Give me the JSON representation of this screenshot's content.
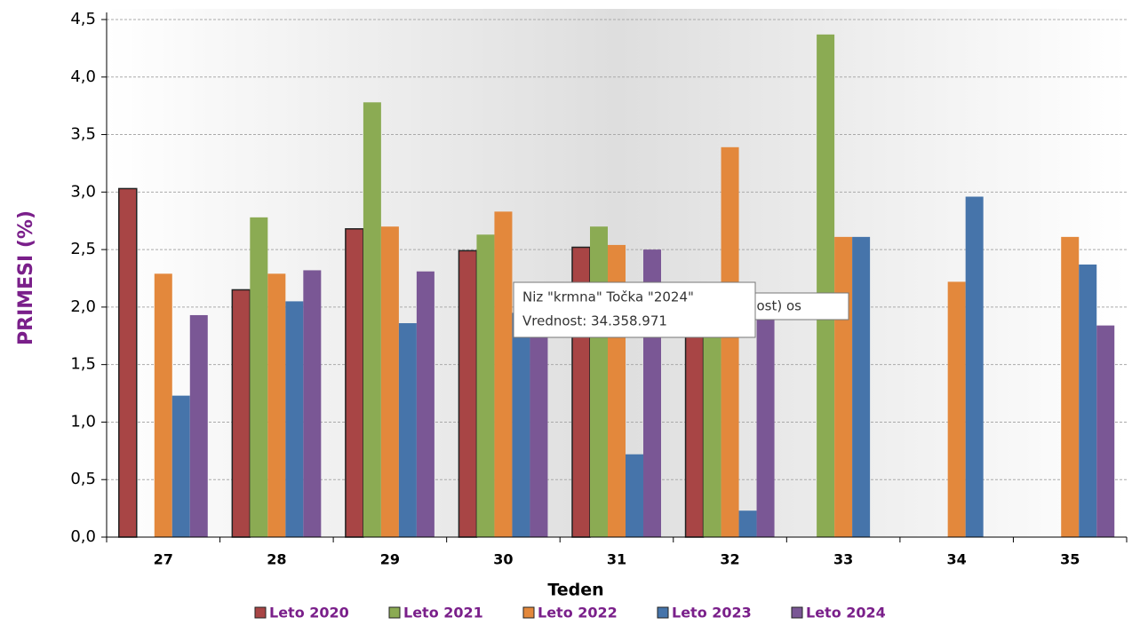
{
  "chart_data": {
    "type": "bar",
    "y_label": "PRIMESI (%)",
    "x_label": "Teden",
    "categories": [
      "27",
      "28",
      "29",
      "30",
      "31",
      "32",
      "33",
      "34",
      "35"
    ],
    "series": [
      {
        "name": "Leto 2020",
        "color": "#a84545",
        "values": [
          3.03,
          2.15,
          2.68,
          2.49,
          2.52,
          1.9,
          null,
          null,
          null
        ]
      },
      {
        "name": "Leto 2021",
        "color": "#8bab53",
        "values": [
          null,
          2.78,
          3.78,
          2.63,
          2.7,
          1.9,
          4.37,
          null,
          null
        ]
      },
      {
        "name": "Leto 2022",
        "color": "#e3883c",
        "values": [
          2.29,
          2.29,
          2.7,
          2.83,
          2.54,
          3.39,
          2.61,
          2.22,
          2.61
        ]
      },
      {
        "name": "Leto 2023",
        "color": "#4674aa",
        "values": [
          1.23,
          2.05,
          1.86,
          1.95,
          0.72,
          0.23,
          2.61,
          2.96,
          2.37
        ]
      },
      {
        "name": "Leto 2024",
        "color": "#7a5795",
        "values": [
          1.93,
          2.32,
          2.31,
          1.95,
          2.5,
          1.9,
          null,
          null,
          1.84
        ]
      }
    ],
    "ylim": [
      0,
      4.5
    ],
    "yticks": [
      {
        "value": 0,
        "label": "0,0"
      },
      {
        "value": 0.5,
        "label": "0,5"
      },
      {
        "value": 1,
        "label": "1,0"
      },
      {
        "value": 1.5,
        "label": "1,5"
      },
      {
        "value": 2,
        "label": "2,0"
      },
      {
        "value": 2.5,
        "label": "2,5"
      },
      {
        "value": 3,
        "label": "3,0"
      },
      {
        "value": 3.5,
        "label": "3,5"
      },
      {
        "value": 4,
        "label": "4,0"
      },
      {
        "value": 4.5,
        "label": "4,5"
      }
    ],
    "grid": true,
    "legend": "bottom",
    "tooltip_behind": "nost)  os",
    "tooltip": [
      "Niz \"krmna\" Točka \"2024\"",
      "Vrednost:  34.358.971"
    ]
  }
}
